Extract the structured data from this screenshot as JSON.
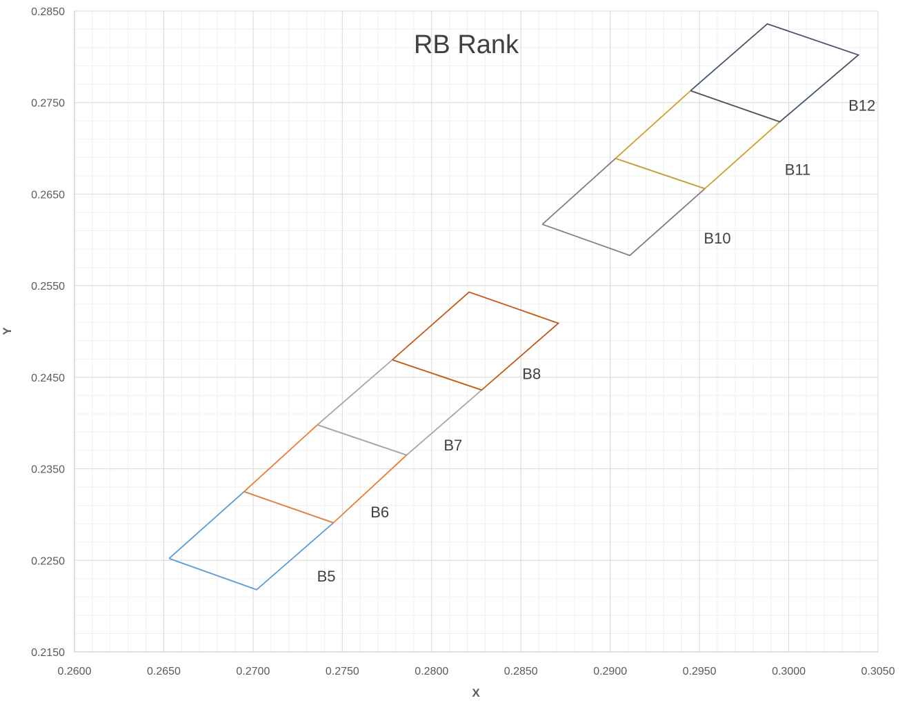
{
  "chart_data": {
    "type": "line",
    "title": "RB Rank",
    "xlabel": "X",
    "ylabel": "Y",
    "xlim": [
      0.26,
      0.305
    ],
    "ylim": [
      0.215,
      0.285
    ],
    "x_ticks": [
      "0.2600",
      "0.2650",
      "0.2700",
      "0.2750",
      "0.2800",
      "0.2850",
      "0.2900",
      "0.2950",
      "0.3000",
      "0.3050"
    ],
    "y_ticks": [
      "0.2850",
      "0.2750",
      "0.2650",
      "0.2550",
      "0.2450",
      "0.2350",
      "0.2250",
      "0.2150"
    ],
    "minor_grid": {
      "x_step": 0.001,
      "y_step": 0.002
    },
    "grid": true,
    "legend": "none",
    "series": [
      {
        "label": "B5",
        "color": "#5b9bd5",
        "points": [
          [
            0.2653,
            0.2252
          ],
          [
            0.2702,
            0.2218
          ],
          [
            0.2745,
            0.2291
          ],
          [
            0.2695,
            0.2325
          ],
          [
            0.2653,
            0.2252
          ]
        ],
        "label_at": [
          0.2741,
          0.2227
        ]
      },
      {
        "label": "B6",
        "color": "#ed7d31",
        "points": [
          [
            0.2695,
            0.2325
          ],
          [
            0.2745,
            0.2291
          ],
          [
            0.2786,
            0.2365
          ],
          [
            0.2736,
            0.2398
          ],
          [
            0.2695,
            0.2325
          ]
        ],
        "label_at": [
          0.2771,
          0.2297
        ]
      },
      {
        "label": "B7",
        "color": "#a5a5a5",
        "points": [
          [
            0.2736,
            0.2398
          ],
          [
            0.2786,
            0.2365
          ],
          [
            0.2828,
            0.2436
          ],
          [
            0.2778,
            0.2469
          ],
          [
            0.2736,
            0.2398
          ]
        ],
        "label_at": [
          0.2812,
          0.237
        ]
      },
      {
        "label": "B8",
        "color": "#c55a11",
        "points": [
          [
            0.2778,
            0.2469
          ],
          [
            0.2828,
            0.2436
          ],
          [
            0.2871,
            0.2509
          ],
          [
            0.2821,
            0.2543
          ],
          [
            0.2778,
            0.2469
          ]
        ],
        "label_at": [
          0.2856,
          0.2448
        ]
      },
      {
        "label": "B10",
        "color": "#7f7f7f",
        "points": [
          [
            0.2862,
            0.2617
          ],
          [
            0.2911,
            0.2583
          ],
          [
            0.2953,
            0.2656
          ],
          [
            0.2903,
            0.2689
          ],
          [
            0.2862,
            0.2617
          ]
        ],
        "label_at": [
          0.296,
          0.2596
        ]
      },
      {
        "label": "B11",
        "color": "#c9a227",
        "points": [
          [
            0.2903,
            0.2689
          ],
          [
            0.2953,
            0.2656
          ],
          [
            0.2995,
            0.2729
          ],
          [
            0.2945,
            0.2763
          ],
          [
            0.2903,
            0.2689
          ]
        ],
        "label_at": [
          0.3005,
          0.2671
        ]
      },
      {
        "label": "B12",
        "color": "#44546a",
        "points": [
          [
            0.2945,
            0.2763
          ],
          [
            0.2995,
            0.2729
          ],
          [
            0.3039,
            0.2802
          ],
          [
            0.2988,
            0.2836
          ],
          [
            0.2945,
            0.2763
          ]
        ],
        "label_at": [
          0.3041,
          0.2741
        ]
      }
    ]
  }
}
